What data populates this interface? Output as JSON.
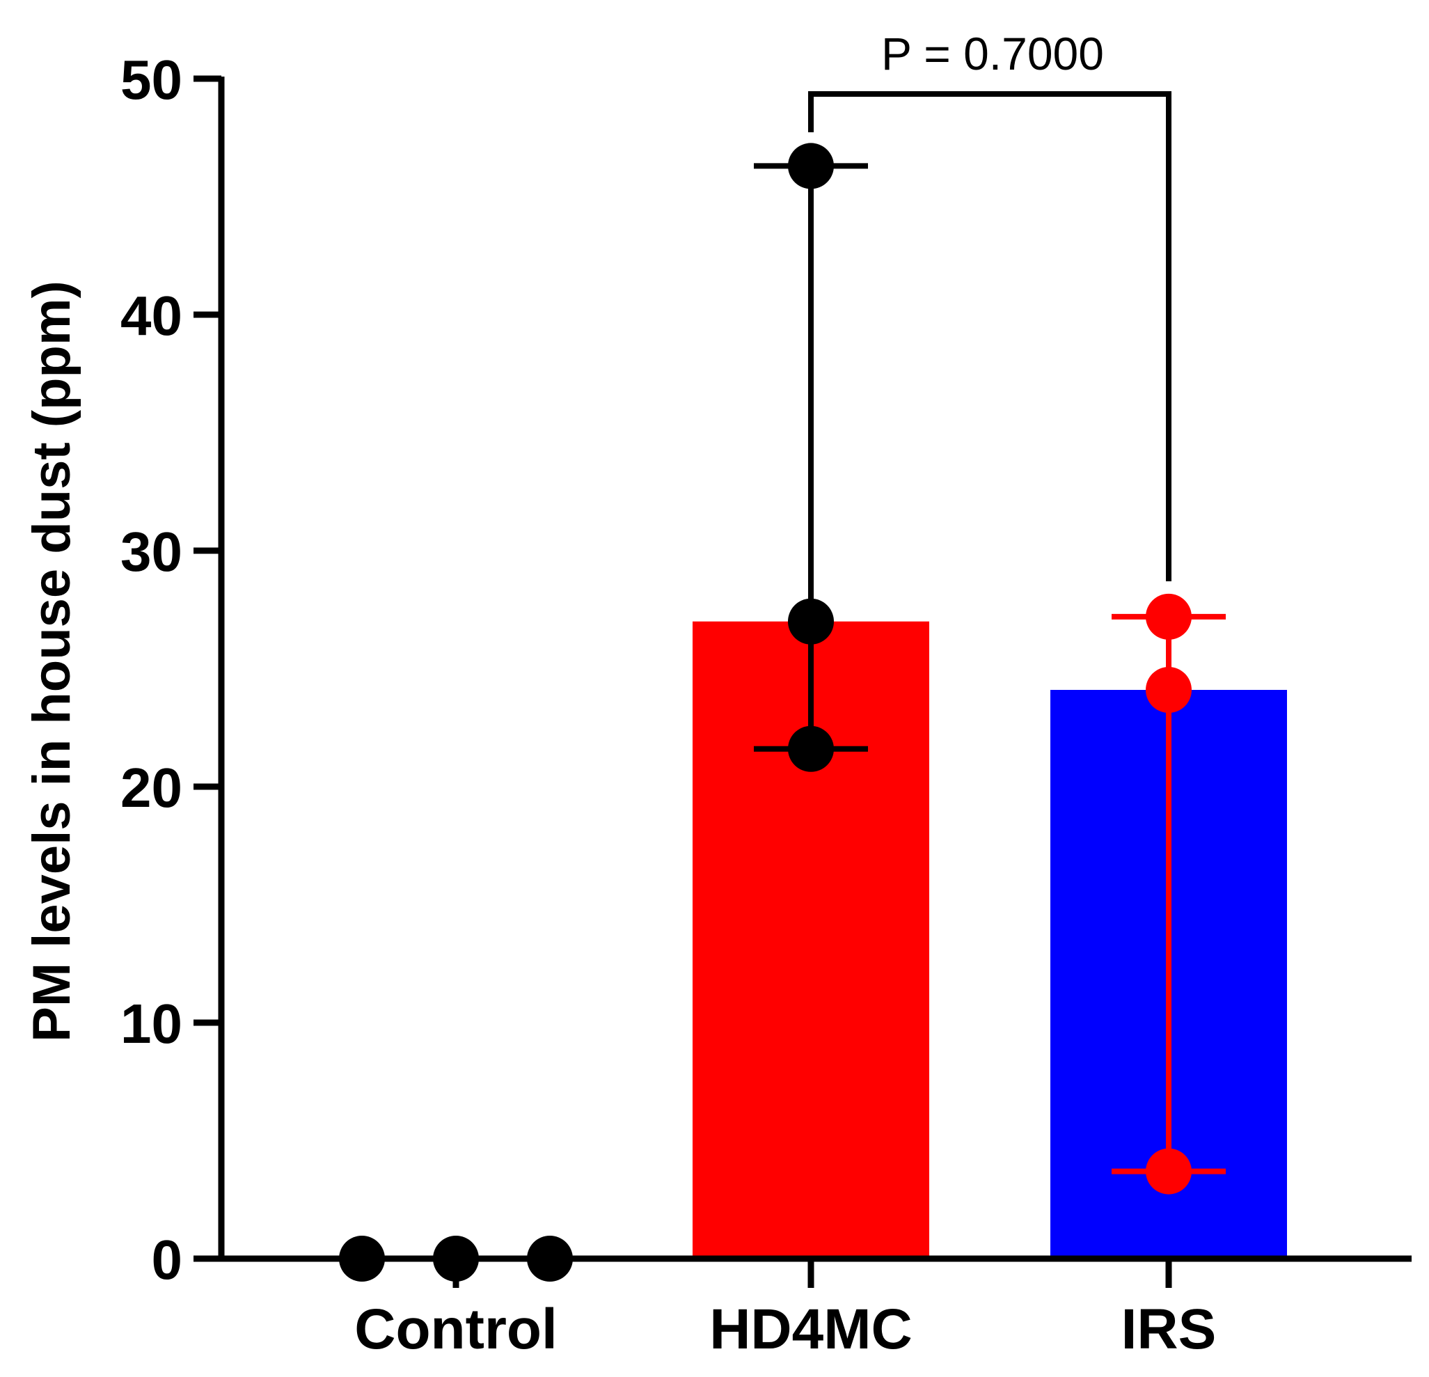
{
  "chart_data": {
    "type": "bar",
    "title": "",
    "xlabel": "",
    "ylabel": "PM levels in house dust (ppm)",
    "ylim": [
      0,
      50
    ],
    "yticks": [
      0,
      10,
      20,
      30,
      40,
      50
    ],
    "ytick_labels": [
      "0",
      "10",
      "20",
      "30",
      "40",
      "50"
    ],
    "categories": [
      "Control",
      "HD4MC",
      "IRS"
    ],
    "values": [
      0,
      27.0,
      24.1
    ],
    "bar_colors": [
      "#ffffff",
      "#ff0000",
      "#0000ff"
    ],
    "error_ranges": [
      [
        0,
        0
      ],
      [
        21.6,
        46.3
      ],
      [
        3.7,
        27.2
      ]
    ],
    "points": [
      {
        "category": "Control",
        "values": [
          0,
          0,
          0
        ],
        "color": "#000000"
      },
      {
        "category": "HD4MC",
        "values": [
          46.3,
          27.0,
          21.6
        ],
        "color": "#000000"
      },
      {
        "category": "IRS",
        "values": [
          27.2,
          24.1,
          3.7
        ],
        "color": "#ff0000"
      }
    ],
    "annotations": [
      {
        "text": "P = 0.7000",
        "between": [
          "HD4MC",
          "IRS"
        ]
      }
    ],
    "grid": false,
    "legend": "none"
  }
}
